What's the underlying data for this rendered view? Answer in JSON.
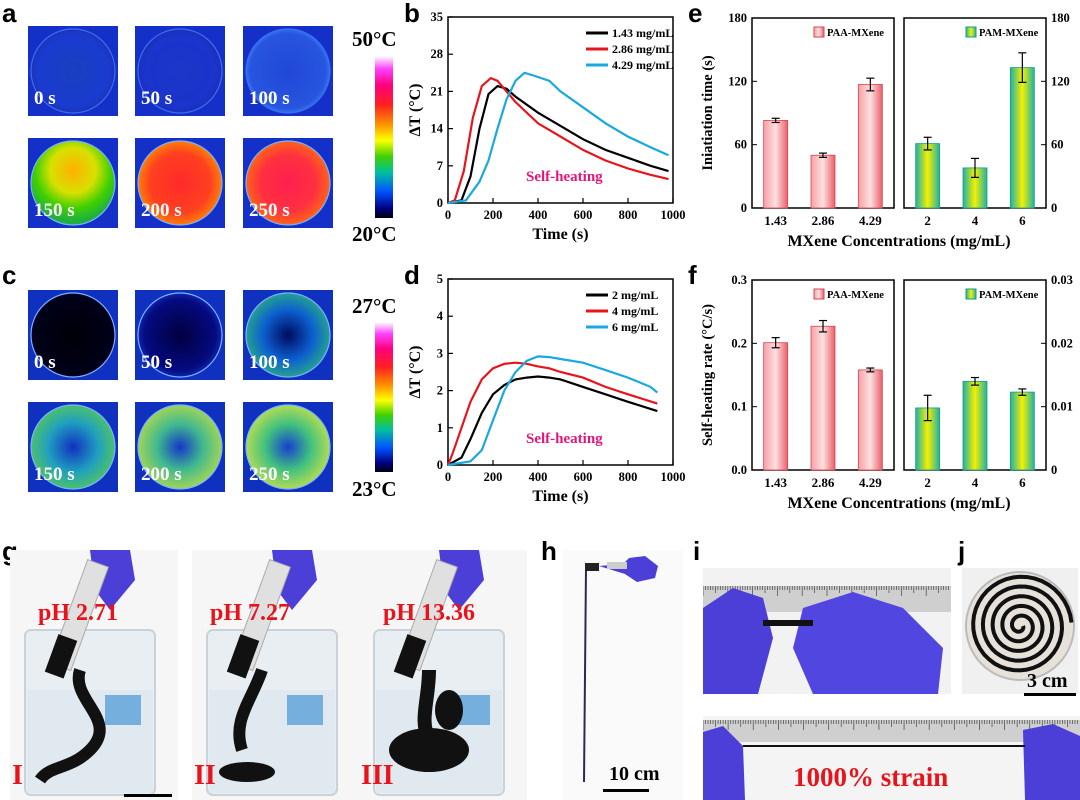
{
  "panels": {
    "a": {
      "label": "a",
      "times": [
        "0 s",
        "50 s",
        "100 s",
        "150 s",
        "200 s",
        "250 s"
      ],
      "cb_top": "50°C",
      "cb_bottom": "20°C"
    },
    "c": {
      "label": "c",
      "times": [
        "0 s",
        "50 s",
        "100 s",
        "150 s",
        "200 s",
        "250 s"
      ],
      "cb_top": "27°C",
      "cb_bottom": "23°C"
    },
    "b": {
      "label": "b"
    },
    "d": {
      "label": "d"
    },
    "e": {
      "label": "e"
    },
    "f": {
      "label": "f"
    },
    "g": {
      "label": "g",
      "ph": [
        "pH 2.71",
        "pH 7.27",
        "pH 13.36"
      ],
      "roman": [
        "I",
        "II",
        "III"
      ]
    },
    "h": {
      "label": "h",
      "scale": "10 cm"
    },
    "i": {
      "label": "i",
      "strain": "1000% strain"
    },
    "j": {
      "label": "j",
      "scale": "3 cm"
    }
  },
  "chart_data": [
    {
      "id": "b",
      "type": "line",
      "xlabel": "Time (s)",
      "ylabel": "ΔT (°C)",
      "xlim": [
        0,
        1000
      ],
      "ylim": [
        0,
        35
      ],
      "xticks": [
        0,
        200,
        400,
        600,
        800,
        1000
      ],
      "yticks": [
        0,
        7,
        14,
        21,
        28,
        35
      ],
      "annotation": "Self-heating",
      "legend": "top-right",
      "series": [
        {
          "name": "1.43 mg/mL",
          "color": "#000000",
          "x": [
            0,
            60,
            100,
            140,
            180,
            220,
            260,
            300,
            400,
            500,
            600,
            700,
            800,
            900,
            980
          ],
          "y": [
            0,
            0.5,
            5,
            14,
            20.5,
            22,
            21.5,
            20,
            17,
            14.5,
            12,
            10,
            8.5,
            7,
            6
          ]
        },
        {
          "name": "2.86 mg/mL",
          "color": "#e8141c",
          "x": [
            0,
            30,
            70,
            110,
            150,
            190,
            220,
            260,
            300,
            400,
            500,
            600,
            700,
            800,
            900,
            980
          ],
          "y": [
            0,
            0.5,
            6,
            16,
            22,
            23.5,
            23,
            21,
            19,
            15,
            12.5,
            10,
            8,
            6.5,
            5.3,
            4.5
          ]
        },
        {
          "name": "4.29 mg/mL",
          "color": "#1aa8e0",
          "x": [
            0,
            80,
            140,
            180,
            220,
            260,
            300,
            340,
            380,
            450,
            500,
            600,
            700,
            800,
            900,
            980
          ],
          "y": [
            0,
            0.5,
            4,
            8,
            14,
            19.5,
            23,
            24.5,
            24,
            23,
            21,
            18,
            15,
            12.5,
            10.5,
            9
          ]
        }
      ]
    },
    {
      "id": "d",
      "type": "line",
      "xlabel": "Time (s)",
      "ylabel": "ΔT (°C)",
      "xlim": [
        0,
        1000
      ],
      "ylim": [
        0,
        5
      ],
      "xticks": [
        0,
        200,
        400,
        600,
        800,
        1000
      ],
      "yticks": [
        0,
        1,
        2,
        3,
        4,
        5
      ],
      "annotation": "Self-heating",
      "legend": "top-right",
      "series": [
        {
          "name": "2 mg/mL",
          "color": "#000000",
          "x": [
            0,
            60,
            100,
            150,
            200,
            250,
            300,
            350,
            400,
            450,
            500,
            600,
            700,
            800,
            930
          ],
          "y": [
            0,
            0.2,
            0.7,
            1.4,
            1.9,
            2.15,
            2.3,
            2.35,
            2.38,
            2.35,
            2.3,
            2.1,
            1.9,
            1.7,
            1.45
          ]
        },
        {
          "name": "4 mg/mL",
          "color": "#e8141c",
          "x": [
            0,
            20,
            60,
            100,
            150,
            200,
            250,
            300,
            350,
            400,
            450,
            500,
            600,
            700,
            800,
            930
          ],
          "y": [
            0,
            0.3,
            1.0,
            1.7,
            2.3,
            2.6,
            2.72,
            2.75,
            2.72,
            2.65,
            2.6,
            2.5,
            2.35,
            2.1,
            1.9,
            1.65
          ]
        },
        {
          "name": "6 mg/mL",
          "color": "#1aa8e0",
          "x": [
            0,
            100,
            150,
            200,
            250,
            300,
            350,
            400,
            450,
            500,
            600,
            700,
            800,
            900,
            930
          ],
          "y": [
            0,
            0.1,
            0.4,
            1.2,
            2.0,
            2.5,
            2.8,
            2.92,
            2.9,
            2.85,
            2.75,
            2.55,
            2.35,
            2.1,
            1.95
          ]
        }
      ]
    },
    {
      "id": "e",
      "type": "bar",
      "xlabel": "MXene Concentrations (mg/mL)",
      "ylabel": "Iniatiation time (s)",
      "groups": [
        {
          "legend": "PAA-MXene",
          "categories": [
            "1.43",
            "2.86",
            "4.29"
          ],
          "values": [
            83,
            50,
            117
          ],
          "errors": [
            2,
            2,
            6
          ],
          "ylim": [
            0,
            180
          ],
          "yticks": [
            0,
            60,
            120,
            180
          ],
          "axis": "left"
        },
        {
          "legend": "PAM-MXene",
          "categories": [
            "2",
            "4",
            "6"
          ],
          "values": [
            61,
            38,
            133
          ],
          "errors": [
            6,
            9,
            14
          ],
          "ylim": [
            0,
            180
          ],
          "yticks": [
            0,
            60,
            120,
            180
          ],
          "axis": "right"
        }
      ]
    },
    {
      "id": "f",
      "type": "bar",
      "xlabel": "MXene Concentrations (mg/mL)",
      "ylabel": "Self-heating rate (°C/s)",
      "groups": [
        {
          "legend": "PAA-MXene",
          "categories": [
            "1.43",
            "2.86",
            "4.29"
          ],
          "values": [
            0.201,
            0.227,
            0.158
          ],
          "errors": [
            0.008,
            0.009,
            0.003
          ],
          "ylim": [
            0,
            0.3
          ],
          "yticks": [
            "0.0",
            "0.1",
            "0.2",
            "0.3"
          ],
          "axis": "left"
        },
        {
          "legend": "PAM-MXene",
          "categories": [
            "2",
            "4",
            "6"
          ],
          "values": [
            0.0098,
            0.014,
            0.0123
          ],
          "errors": [
            0.002,
            0.0006,
            0.0005
          ],
          "ylim": [
            0,
            0.03
          ],
          "yticks": [
            "0",
            "0.01",
            "0.02",
            "0.03"
          ],
          "axis": "right"
        }
      ]
    }
  ]
}
